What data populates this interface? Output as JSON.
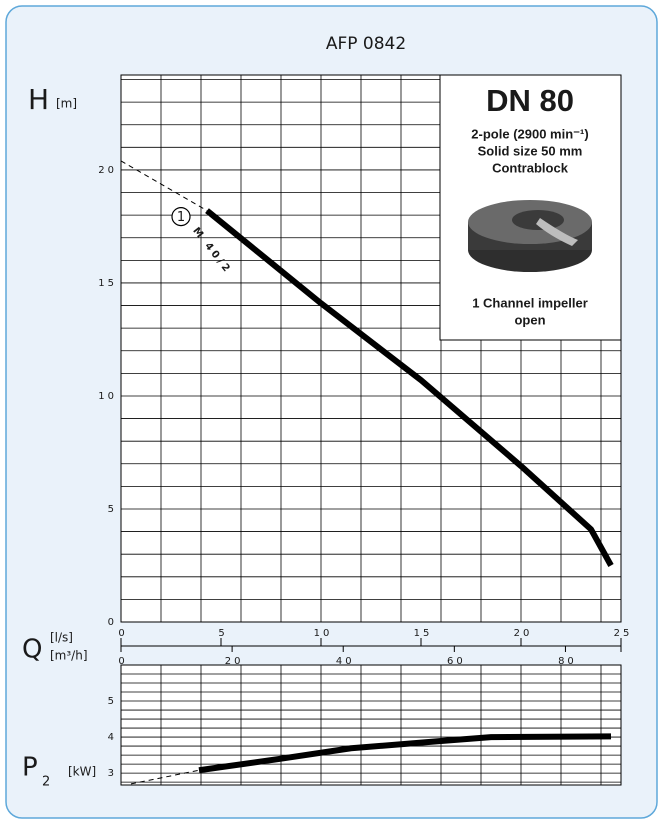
{
  "title": "AFP 0842",
  "chart_data": [
    {
      "type": "line",
      "y_symbol": "H",
      "y_unit": "[m]",
      "x_symbol": "Q",
      "x_unit": "[l/s]",
      "x2_unit": "[m³/h]",
      "xlim": [
        0,
        25
      ],
      "xticks": [
        0,
        5,
        10,
        15,
        20,
        25
      ],
      "xgrid_step": 2,
      "x2lim": [
        0,
        90
      ],
      "x2ticks": [
        0,
        20,
        40,
        60,
        80
      ],
      "ylim": [
        0,
        24.2
      ],
      "yticks": [
        0,
        5,
        10,
        15,
        20
      ],
      "ygrid_step": 1,
      "grid": true,
      "curve_id": "1",
      "curve_label": "M 40/2",
      "series": [
        {
          "color": "#000000",
          "style": "solid",
          "x": [
            4.3,
            10,
            15,
            20,
            23.5,
            24.5
          ],
          "values": [
            18.2,
            14.1,
            10.7,
            6.9,
            4.1,
            2.5
          ]
        },
        {
          "color": "#000000",
          "style": "dashed",
          "x": [
            0,
            4.3
          ],
          "values": [
            20.4,
            18.2
          ]
        }
      ],
      "infobox": {
        "title": "DN 80",
        "lines": [
          "2-pole (2900 min⁻¹)",
          "Solid size 50 mm",
          "Contrablock"
        ],
        "caption": [
          "1 Channel impeller",
          "open"
        ]
      }
    },
    {
      "type": "line",
      "y_symbol": "P",
      "y_subscript": "2",
      "y_unit": "[kW]",
      "xlim": [
        0,
        25
      ],
      "xgrid_step": 2,
      "ylim": [
        2.67,
        6
      ],
      "yticks": [
        3,
        4,
        5
      ],
      "ygrid_step": 0.25,
      "grid": true,
      "series": [
        {
          "color": "#000000",
          "style": "solid",
          "x": [
            3.9,
            8,
            11.5,
            16,
            18.5,
            24.5
          ],
          "values": [
            3.08,
            3.4,
            3.69,
            3.89,
            4.0,
            4.02
          ]
        },
        {
          "color": "#000000",
          "style": "dashed",
          "x": [
            0.5,
            3.9
          ],
          "values": [
            2.7,
            3.08
          ]
        }
      ]
    }
  ]
}
